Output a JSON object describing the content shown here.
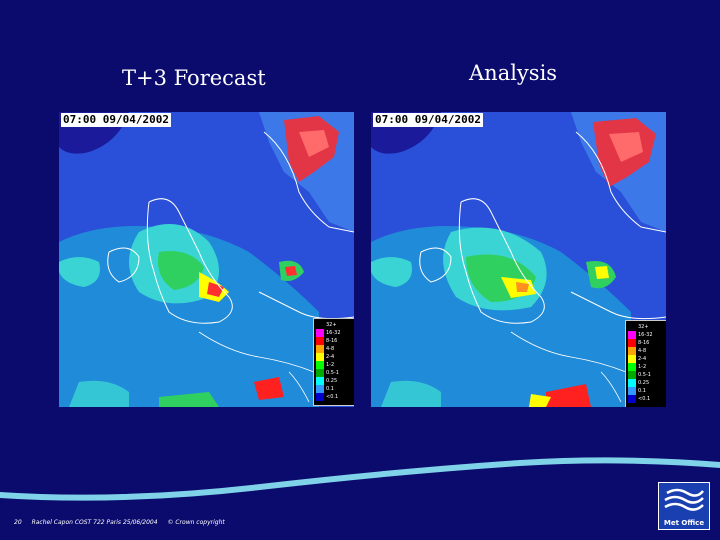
{
  "titles": {
    "left": "T+3 Forecast",
    "right": "Analysis"
  },
  "panels": {
    "left": {
      "timestamp": "07:00  09/04/2002"
    },
    "right": {
      "timestamp": "07:00  09/04/2002"
    }
  },
  "colorbar": {
    "swatches": [
      "#000000",
      "#ff00ff",
      "#ff0000",
      "#ffa500",
      "#ffff00",
      "#00ff00",
      "#00aa00",
      "#00ffff",
      "#3399ff",
      "#0000cc"
    ],
    "labels": [
      "32+",
      "16-32",
      "8-16",
      "4-8",
      "2-4",
      "1-2",
      "0.5-1",
      "0.25",
      "0.1",
      "<0.1"
    ]
  },
  "footer": {
    "page_number": "20",
    "author": "Rachel Capon COST 722 Paris 25/06/2004",
    "copyright": "© Crown copyright"
  },
  "logo": {
    "label": "Met Office",
    "colors": {
      "wave": "#ffffff",
      "bg": "#1a3fb0"
    }
  },
  "colors": {
    "background": "#0b0b6e",
    "wave": "#7fd2e8",
    "sea": "#2a4fd8"
  }
}
